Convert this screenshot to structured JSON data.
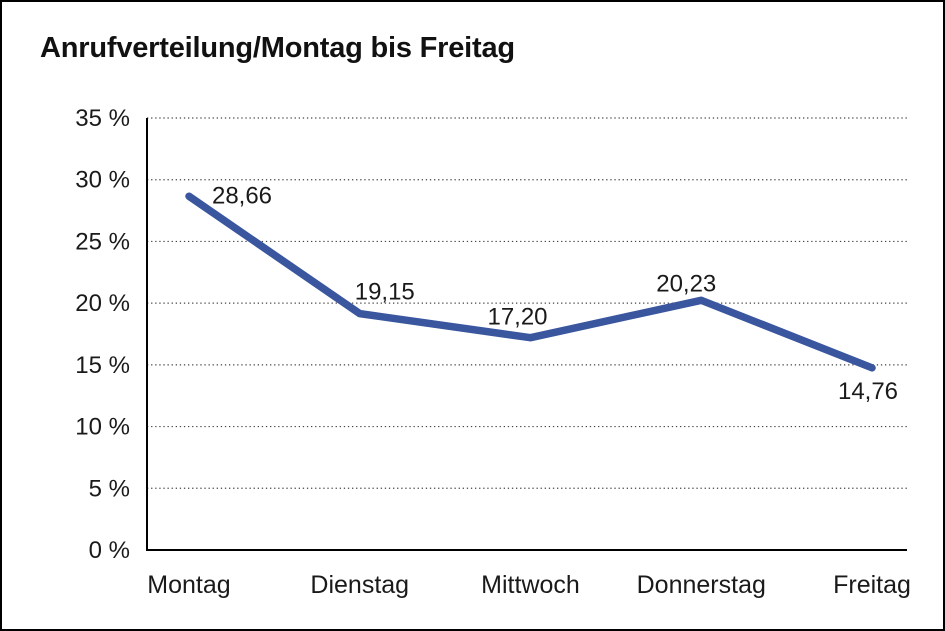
{
  "title": "Anrufverteilung/Montag bis Freitag",
  "chart_data": {
    "type": "line",
    "title": "Anrufverteilung/Montag bis Freitag",
    "categories": [
      "Montag",
      "Dienstag",
      "Mittwoch",
      "Donnerstag",
      "Freitag"
    ],
    "values": [
      28.66,
      19.15,
      17.2,
      20.23,
      14.76
    ],
    "data_labels": [
      "28,66",
      "19,15",
      "17,20",
      "20,23",
      "14,76"
    ],
    "xlabel": "",
    "ylabel": "",
    "ylim": [
      0,
      35
    ],
    "ytick_step": 5,
    "ytick_labels": [
      "0 %",
      "5 %",
      "10 %",
      "15 %",
      "20 %",
      "25 %",
      "30 %",
      "35 %"
    ],
    "grid": "horizontal-dotted",
    "legend_position": "none",
    "line_color": "#39569E",
    "axis_color": "#000000",
    "gridline_color": "#444444",
    "label_color": "#1a1a1a",
    "background_color": "#ffffff"
  }
}
